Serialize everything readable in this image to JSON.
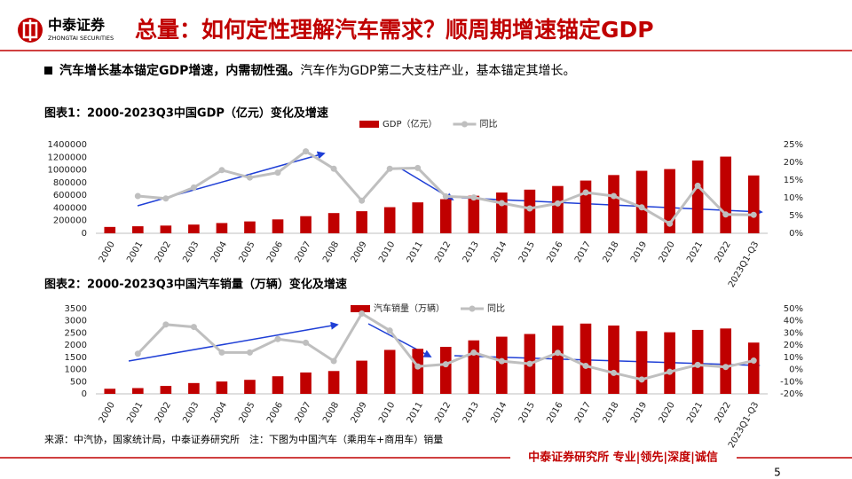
{
  "header": {
    "logo_cn": "中泰证券",
    "logo_en": "ZHONGTAI SECURITIES",
    "title": "总量：如何定性理解汽车需求？顺周期增速锚定GDP"
  },
  "bullet": {
    "bold": "汽车增长基本锚定GDP增速，内需韧性强。",
    "text": "汽车作为GDP第二大支柱产业，基本锚定其增长。"
  },
  "chart_data": [
    {
      "type": "bar",
      "title": "图表1：2000-2023Q3中国GDP（亿元）变化及增速",
      "categories": [
        "2000",
        "2001",
        "2002",
        "2003",
        "2004",
        "2005",
        "2006",
        "2007",
        "2008",
        "2009",
        "2010",
        "2011",
        "2012",
        "2013",
        "2014",
        "2015",
        "2016",
        "2017",
        "2018",
        "2019",
        "2020",
        "2021",
        "2022",
        "2023Q1-Q3"
      ],
      "series": [
        {
          "name": "GDP（亿元）",
          "color": "#c00000",
          "type": "bar",
          "values": [
            100280,
            110863,
            121717,
            137422,
            161840,
            187319,
            219439,
            270092,
            319245,
            348518,
            412119,
            487940,
            538580,
            592963,
            643563,
            688858,
            746395,
            832036,
            919281,
            986515,
            1013567,
            1149237,
            1210207,
            913027
          ]
        },
        {
          "name": "同比",
          "color": "#bfbfbf",
          "type": "line",
          "axis": "y2",
          "values": [
            null,
            10.5,
            9.8,
            12.9,
            17.8,
            15.7,
            17.1,
            23.1,
            18.2,
            9.2,
            18.2,
            18.4,
            10.4,
            10.1,
            8.5,
            7.0,
            8.4,
            11.5,
            10.5,
            7.3,
            2.7,
            13.4,
            5.3,
            5.2
          ]
        }
      ],
      "ylim": [
        0,
        1400000
      ],
      "yticks": [
        0,
        200000,
        400000,
        600000,
        800000,
        1000000,
        1200000,
        1400000
      ],
      "y2lim": [
        0,
        25
      ],
      "y2ticks": [
        {
          "value": 0,
          "label": "0%"
        },
        {
          "value": 5,
          "label": "5%"
        },
        {
          "value": 10,
          "label": "10%"
        },
        {
          "value": 15,
          "label": "15%"
        },
        {
          "value": 20,
          "label": "20%"
        },
        {
          "value": 25,
          "label": "25%"
        }
      ],
      "grid": false,
      "legend": "top"
    },
    {
      "type": "bar",
      "title": "图表2：2000-2023Q3中国汽车销量（万辆）变化及增速",
      "categories": [
        "2000",
        "2001",
        "2002",
        "2003",
        "2004",
        "2005",
        "2006",
        "2007",
        "2008",
        "2009",
        "2010",
        "2011",
        "2012",
        "2013",
        "2014",
        "2015",
        "2016",
        "2017",
        "2018",
        "2019",
        "2020",
        "2021",
        "2022",
        "2023Q1-Q3"
      ],
      "series": [
        {
          "name": "汽车销量（万辆）",
          "color": "#c00000",
          "type": "bar",
          "values": [
            209,
            237,
            325,
            444,
            507,
            576,
            722,
            879,
            938,
            1364,
            1806,
            1851,
            1931,
            2198,
            2349,
            2460,
            2803,
            2888,
            2808,
            2577,
            2531,
            2628,
            2686,
            2107
          ]
        },
        {
          "name": "同比",
          "color": "#bfbfbf",
          "type": "line",
          "axis": "y2",
          "values": [
            null,
            13,
            37,
            35,
            14,
            14,
            25,
            22,
            7,
            46,
            32,
            2.5,
            4.3,
            13.9,
            6.9,
            4.7,
            13.7,
            3.0,
            -2.8,
            -8.2,
            -1.9,
            3.8,
            2.1,
            7.3
          ]
        }
      ],
      "ylim": [
        0,
        3500
      ],
      "yticks": [
        0,
        500,
        1000,
        1500,
        2000,
        2500,
        3000,
        3500
      ],
      "y2lim": [
        -20,
        50
      ],
      "y2ticks": [
        {
          "value": -20,
          "label": "-20%"
        },
        {
          "value": -10,
          "label": "-10%"
        },
        {
          "value": 0,
          "label": "0%"
        },
        {
          "value": 10,
          "label": "10%"
        },
        {
          "value": 20,
          "label": "20%"
        },
        {
          "value": 30,
          "label": "30%"
        },
        {
          "value": 40,
          "label": "40%"
        },
        {
          "value": 50,
          "label": "50%"
        }
      ],
      "grid": false,
      "legend": "top"
    }
  ],
  "source": "来源：中汽协，国家统计局，中泰证券研究所　注：下图为中国汽车（乘用车+商用车）销量",
  "footer": {
    "slogan": "中泰证券研究所 专业|领先|深度|诚信",
    "page": "5"
  }
}
